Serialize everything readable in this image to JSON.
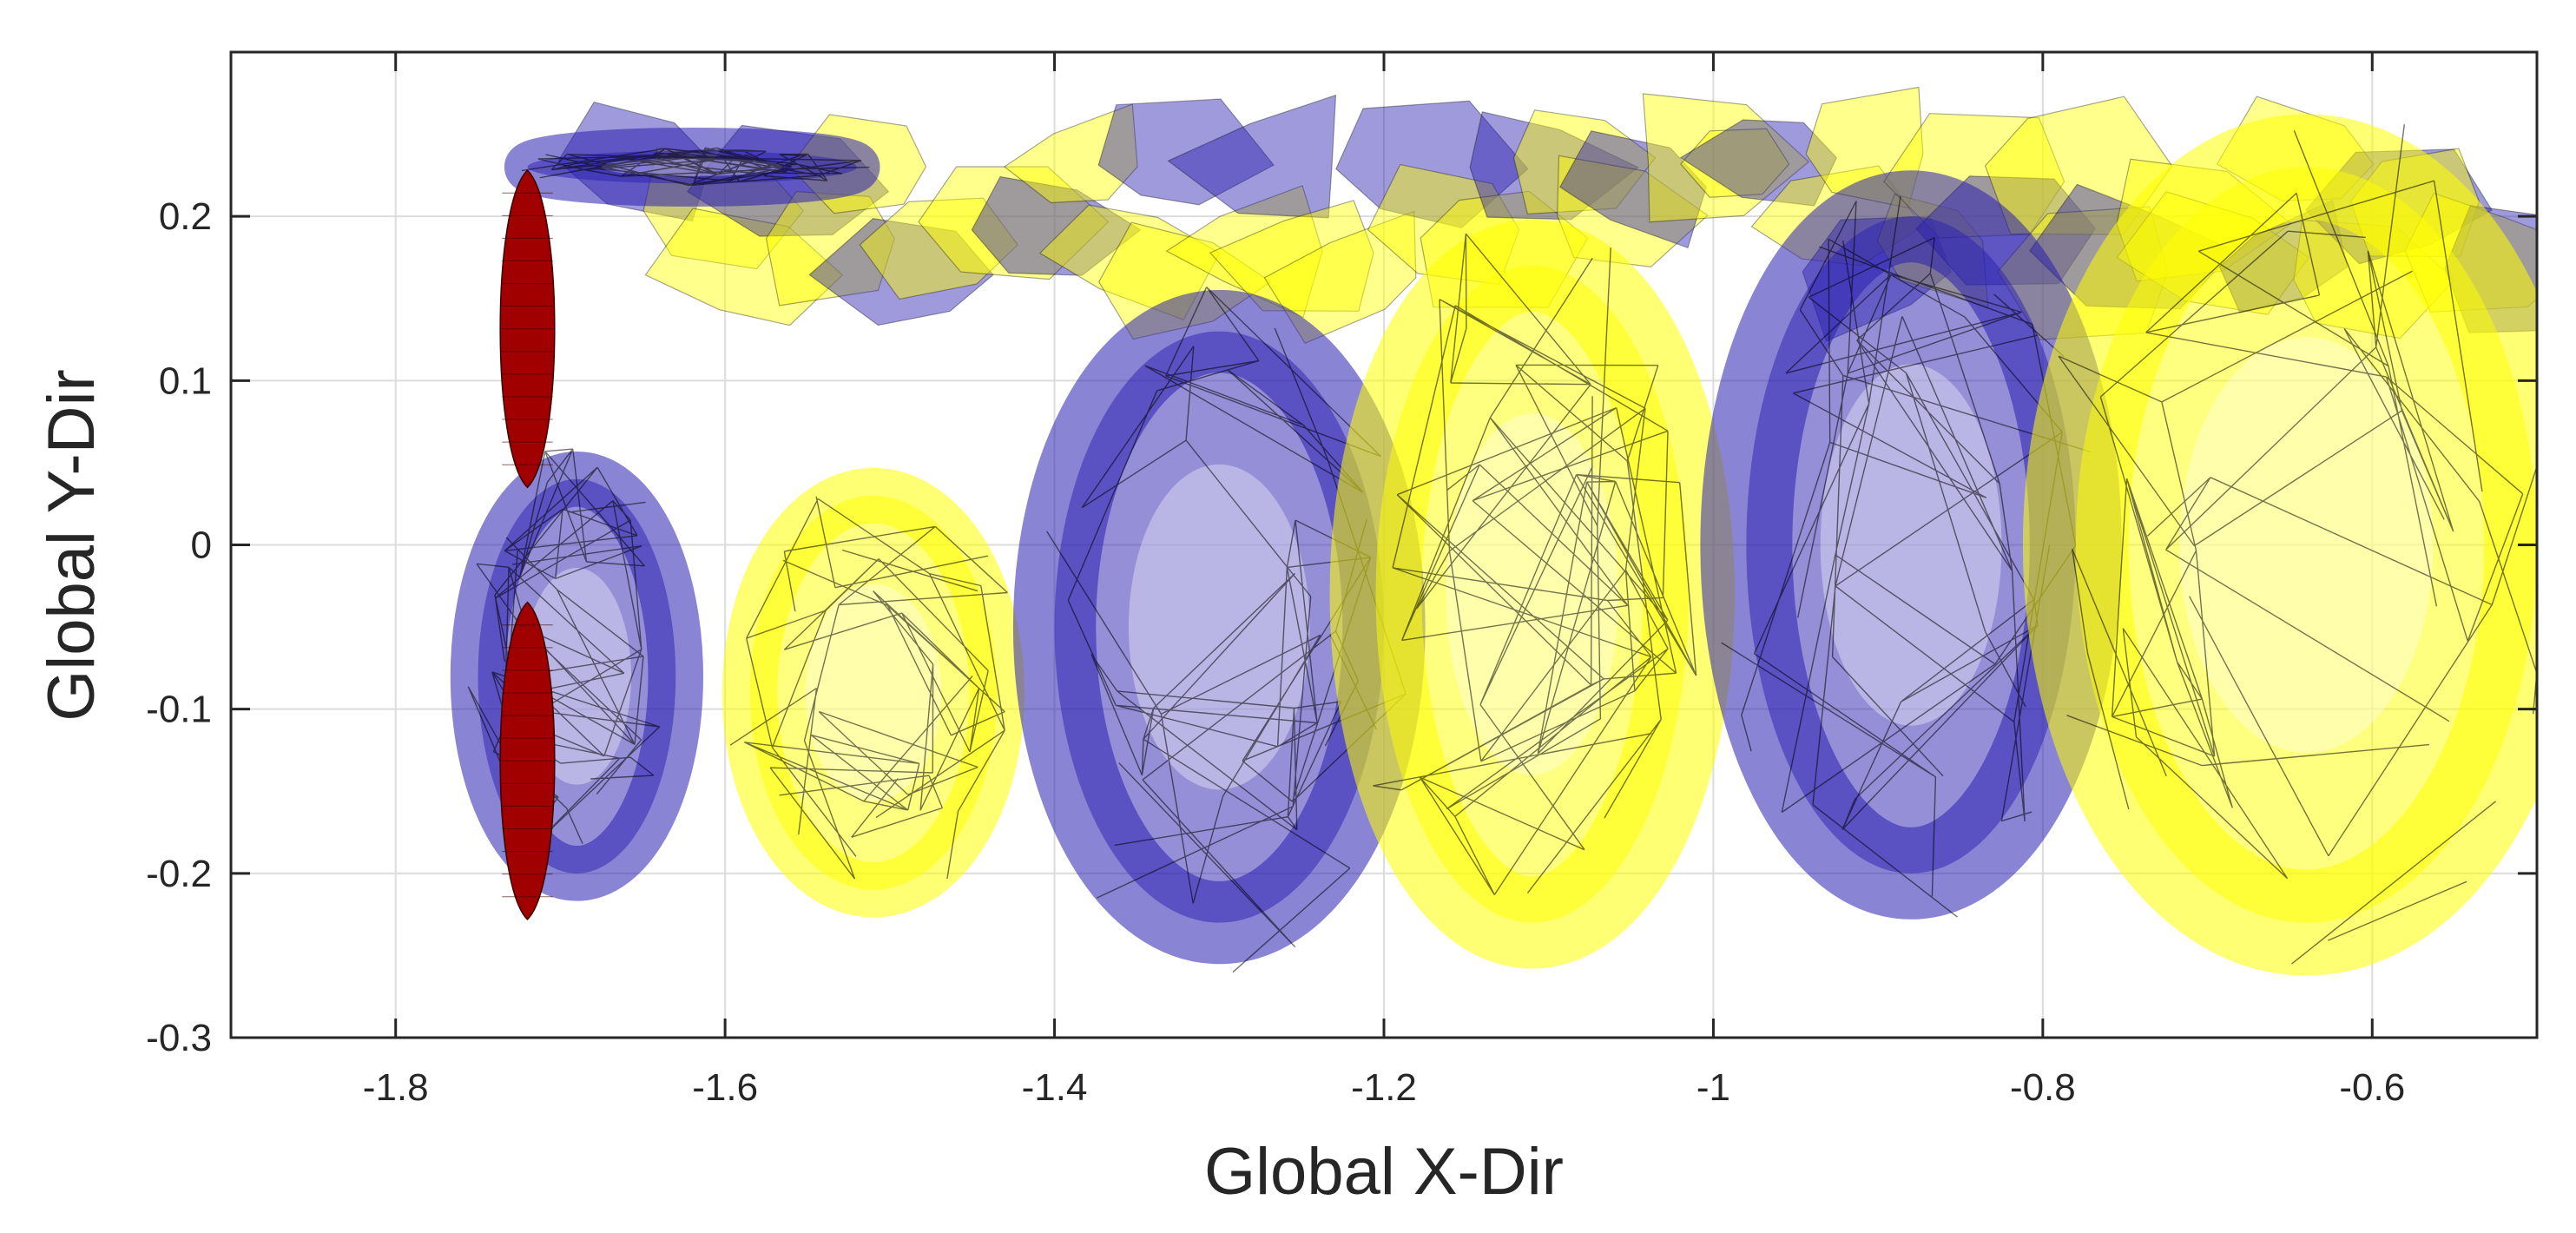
{
  "chart_data": {
    "type": "surface-3d-projection",
    "xlabel": "Global X-Dir",
    "ylabel": "Global Y-Dir",
    "xlim": [
      -1.9,
      -0.5
    ],
    "ylim": [
      -0.3,
      0.3
    ],
    "x_ticks": [
      -1.8,
      -1.6,
      -1.4,
      -1.2,
      -1,
      -0.8,
      -0.6
    ],
    "x_tick_labels": [
      "-1.8",
      "-1.6",
      "-1.4",
      "-1.2",
      "-1",
      "-0.8",
      "-0.6"
    ],
    "y_ticks": [
      -0.3,
      -0.2,
      -0.1,
      0,
      0.1,
      0.2
    ],
    "y_tick_labels": [
      "-0.3",
      "-0.2",
      "-0.1",
      "0",
      "0.1",
      "0.2"
    ],
    "grid": true,
    "colors": {
      "positive_isosurface": "#ffff00",
      "negative_isosurface": "#2a1fb0",
      "blade": "#a00000",
      "mesh_edges": "#000000"
    },
    "blade": {
      "x": -1.72,
      "upper_y": [
        0.035,
        0.228
      ],
      "lower_y": [
        -0.228,
        -0.035
      ]
    },
    "structures": [
      {
        "color": "negative",
        "cx": -1.62,
        "cy": 0.23,
        "rx": 0.1,
        "ry": 0.01
      },
      {
        "color": "negative",
        "cx": -1.69,
        "cy": -0.08,
        "rx": 0.06,
        "ry": 0.12
      },
      {
        "color": "positive",
        "cx": -1.51,
        "cy": -0.09,
        "rx": 0.075,
        "ry": 0.12
      },
      {
        "color": "negative",
        "cx": -1.3,
        "cy": -0.05,
        "rx": 0.1,
        "ry": 0.18
      },
      {
        "color": "positive",
        "cx": -1.11,
        "cy": -0.03,
        "rx": 0.095,
        "ry": 0.2
      },
      {
        "color": "negative",
        "cx": -0.88,
        "cy": 0.0,
        "rx": 0.1,
        "ry": 0.2
      },
      {
        "color": "positive",
        "cx": -0.64,
        "cy": 0.0,
        "rx": 0.14,
        "ry": 0.23
      }
    ]
  }
}
